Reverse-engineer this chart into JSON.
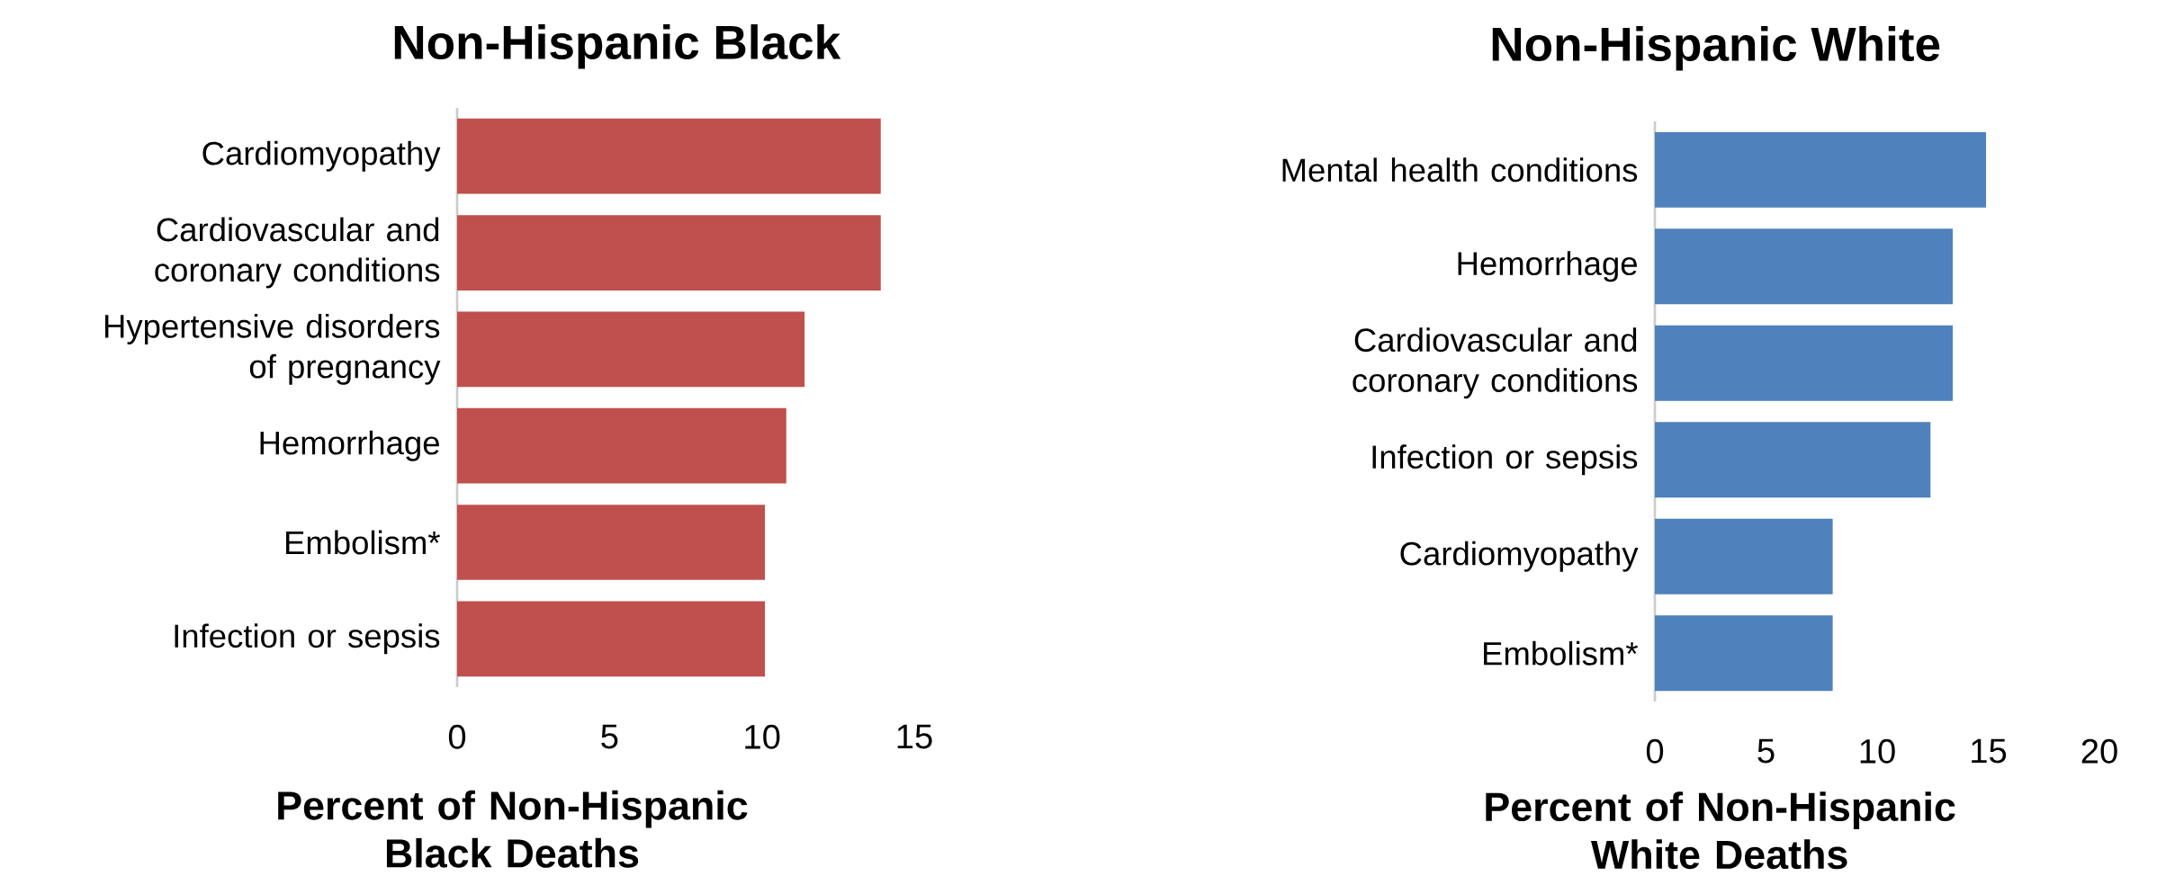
{
  "chart_data": [
    {
      "type": "bar",
      "orientation": "horizontal",
      "title": "Non-Hispanic Black",
      "xlabel": "Percent of Non-Hispanic Black Deaths",
      "categories": [
        "Cardiomyopathy",
        "Cardiovascular and coronary conditions",
        "Hypertensive disorders of pregnancy",
        "Hemorrhage",
        "Embolism*",
        "Infection or sepsis"
      ],
      "values": [
        13.9,
        13.9,
        11.4,
        10.8,
        10.1,
        10.1
      ],
      "color": "#c0504d",
      "xlim": [
        0,
        15
      ],
      "xticks": [
        0,
        5,
        10,
        15
      ]
    },
    {
      "type": "bar",
      "orientation": "horizontal",
      "title": "Non-Hispanic White",
      "xlabel": "Percent of Non-Hispanic White Deaths",
      "categories": [
        "Mental health conditions",
        "Hemorrhage",
        "Cardiovascular and coronary conditions",
        "Infection or sepsis",
        "Cardiomyopathy",
        "Embolism*"
      ],
      "values": [
        14.9,
        13.4,
        13.4,
        12.4,
        8.0,
        8.0
      ],
      "color": "#4f81bd",
      "xlim": [
        0,
        20
      ],
      "xticks": [
        0,
        5,
        10,
        15,
        20
      ]
    }
  ]
}
